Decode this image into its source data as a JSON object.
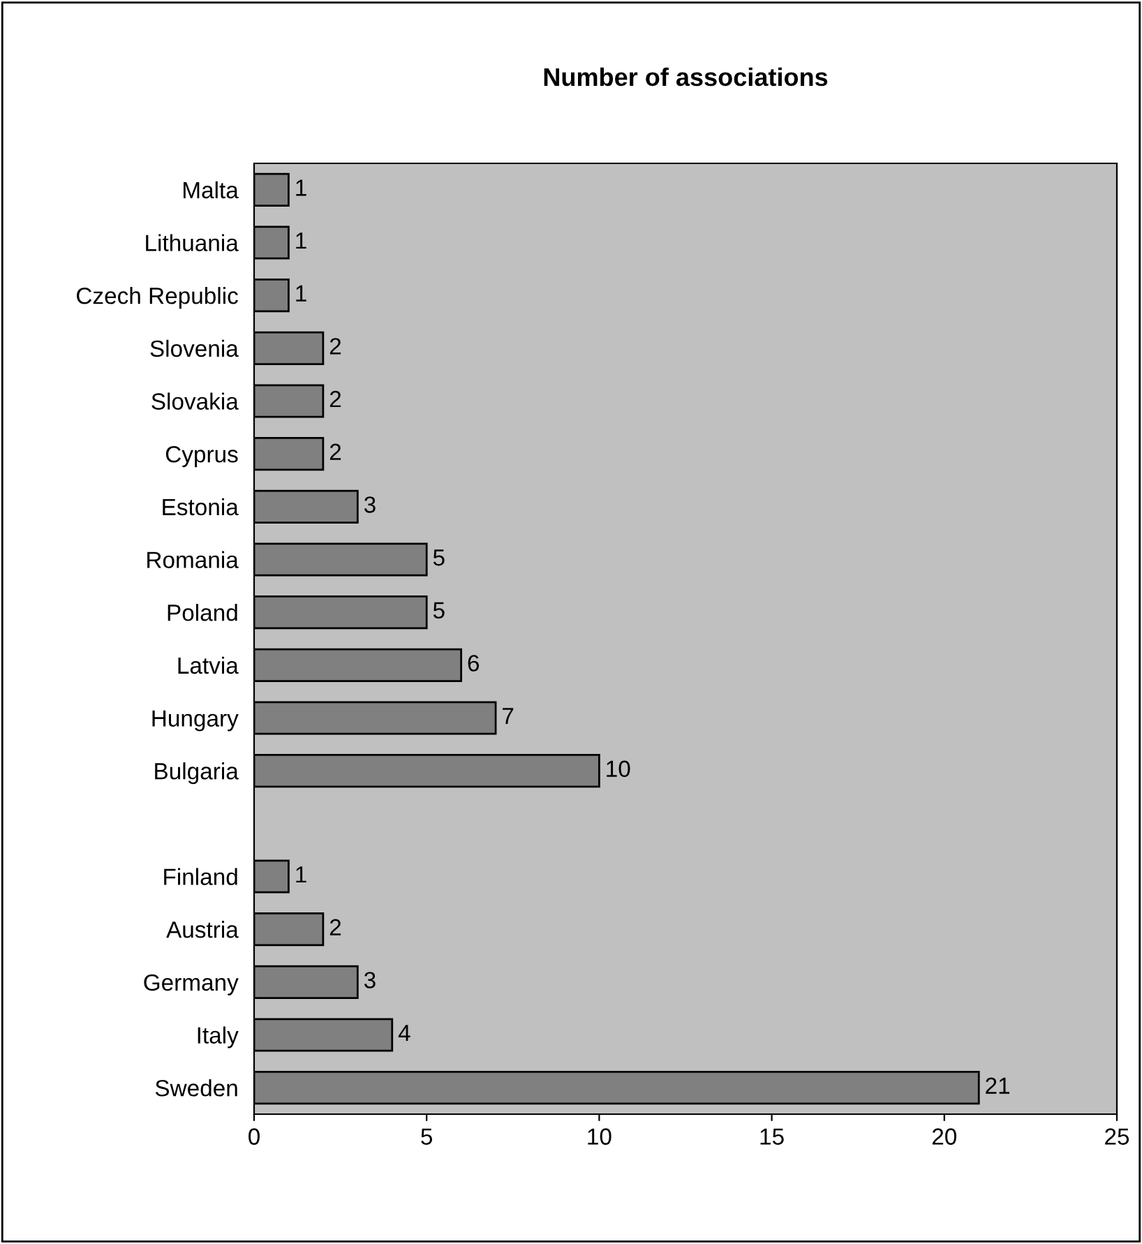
{
  "chart_data": {
    "type": "bar",
    "orientation": "horizontal",
    "title": "Number of associations",
    "categories": [
      "Malta",
      "Lithuania",
      "Czech Republic",
      "Slovenia",
      "Slovakia",
      "Cyprus",
      "Estonia",
      "Romania",
      "Poland",
      "Latvia",
      "Hungary",
      "Bulgaria",
      null,
      "Finland",
      "Austria",
      "Germany",
      "Italy",
      "Sweden"
    ],
    "values": [
      1,
      1,
      1,
      2,
      2,
      2,
      3,
      5,
      5,
      6,
      7,
      10,
      null,
      1,
      2,
      3,
      4,
      21
    ],
    "color": "#808080",
    "xlim": [
      0,
      25
    ],
    "xticks": [
      0,
      5,
      10,
      15,
      20,
      25
    ],
    "grid": false,
    "legend": false,
    "data_labels": true
  }
}
